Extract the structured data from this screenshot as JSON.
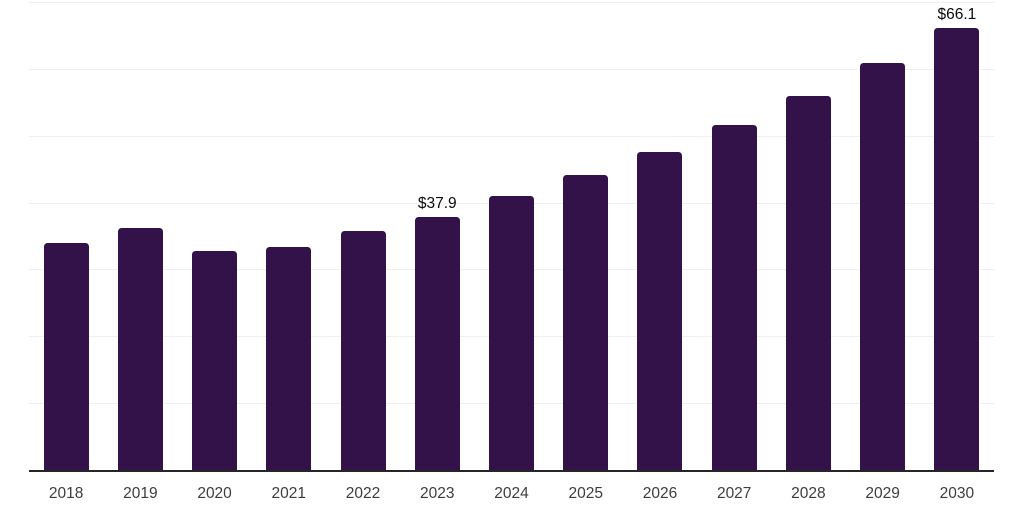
{
  "chart_data": {
    "type": "bar",
    "title": "",
    "xlabel": "",
    "ylabel": "",
    "categories": [
      "2018",
      "2019",
      "2020",
      "2021",
      "2022",
      "2023",
      "2024",
      "2025",
      "2026",
      "2027",
      "2028",
      "2029",
      "2030"
    ],
    "values": [
      33.9,
      36.2,
      32.7,
      33.4,
      35.7,
      37.9,
      41.0,
      44.1,
      47.5,
      51.6,
      55.9,
      60.9,
      66.1
    ],
    "data_labels": [
      "",
      "",
      "",
      "",
      "",
      "$37.9",
      "",
      "",
      "",
      "",
      "",
      "",
      "$66.1"
    ],
    "ylim": [
      0,
      70
    ],
    "gridline_step": 10,
    "grid": "horizontal",
    "legend": "none",
    "colors": {
      "bar": "#33124a",
      "gridline": "#efefef",
      "axis_line": "#262626",
      "tick_label": "#3d3d3d",
      "data_label": "#0b0b0b",
      "background": "#ffffff"
    }
  }
}
